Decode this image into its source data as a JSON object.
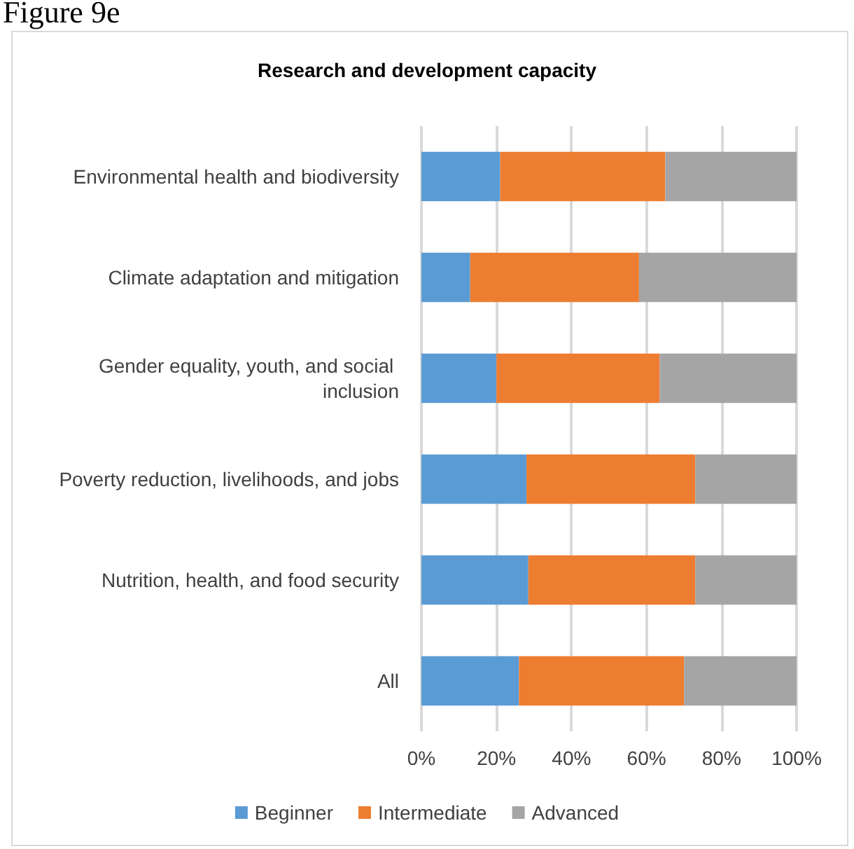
{
  "chart_data": {
    "type": "bar",
    "orientation": "horizontal",
    "stacked": true,
    "title": "Research and development capacity",
    "annotations": [
      "Figure 9e"
    ],
    "categories": [
      "Environmental health and biodiversity",
      "Climate adaptation and mitigation",
      "Gender equality, youth, and social inclusion",
      "Poverty reduction, livelihoods, and jobs",
      "Nutrition, health, and food security",
      "All"
    ],
    "series": [
      {
        "name": "Beginner",
        "color": "#5b9bd5",
        "values": [
          21,
          13,
          20,
          28,
          28.5,
          26
        ]
      },
      {
        "name": "Intermediate",
        "color": "#ed7d31",
        "values": [
          44,
          45,
          43.5,
          45,
          44.5,
          44
        ]
      },
      {
        "name": "Advanced",
        "color": "#a5a5a5",
        "values": [
          35,
          42,
          36.5,
          27,
          27,
          30
        ]
      }
    ],
    "xlim": [
      0,
      100
    ],
    "xticks": [
      {
        "value": 0,
        "label": "0%"
      },
      {
        "value": 20,
        "label": "20%"
      },
      {
        "value": 40,
        "label": "40%"
      },
      {
        "value": 60,
        "label": "60%"
      },
      {
        "value": 80,
        "label": "80%"
      },
      {
        "value": 100,
        "label": "100%"
      }
    ],
    "grid": "x",
    "legend": "bottom"
  }
}
